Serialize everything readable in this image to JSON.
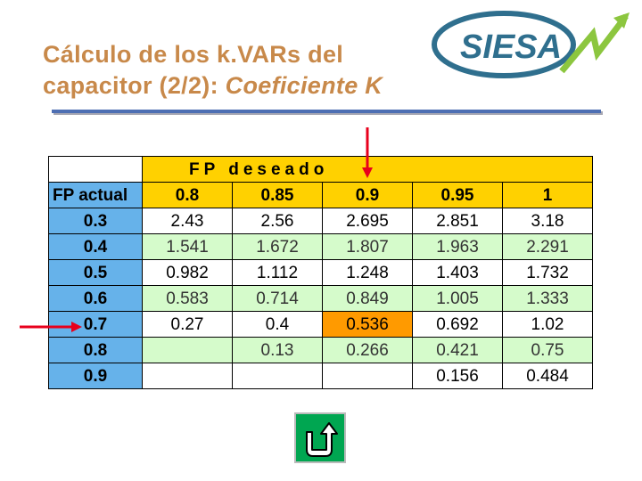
{
  "title": {
    "line1": "Cálculo de los k.VARs del",
    "line2_plain": "capacitor (2/2): ",
    "line2_italic": "Coeficiente K"
  },
  "logo": {
    "text": "SIESA"
  },
  "table": {
    "header_top": "FP deseado",
    "row_header_label": "FP actual",
    "columns": [
      "0.8",
      "0.85",
      "0.9",
      "0.95",
      "1"
    ],
    "rows": [
      {
        "label": "0.3",
        "values": [
          "2.43",
          "2.56",
          "2.695",
          "2.851",
          "3.18"
        ]
      },
      {
        "label": "0.4",
        "values": [
          "1.541",
          "1.672",
          "1.807",
          "1.963",
          "2.291"
        ]
      },
      {
        "label": "0.5",
        "values": [
          "0.982",
          "1.112",
          "1.248",
          "1.403",
          "1.732"
        ]
      },
      {
        "label": "0.6",
        "values": [
          "0.583",
          "0.714",
          "0.849",
          "1.005",
          "1.333"
        ]
      },
      {
        "label": "0.7",
        "values": [
          "0.27",
          "0.4",
          "0.536",
          "0.692",
          "1.02"
        ]
      },
      {
        "label": "0.8",
        "values": [
          "",
          "0.13",
          "0.266",
          "0.421",
          "0.75"
        ]
      },
      {
        "label": "0.9",
        "values": [
          "",
          "",
          "",
          "0.156",
          "0.484"
        ]
      }
    ]
  },
  "colors": {
    "title": "#c8894a",
    "header_yellow": "#ffd100",
    "row_blue": "#66b2ea",
    "cell_green": "#d5fbcb",
    "highlight_orange": "#ff9a00",
    "arrow_red": "#e8001c",
    "button_green": "#00a651"
  },
  "nav": {
    "back_icon": "u-turn-arrow-icon"
  }
}
